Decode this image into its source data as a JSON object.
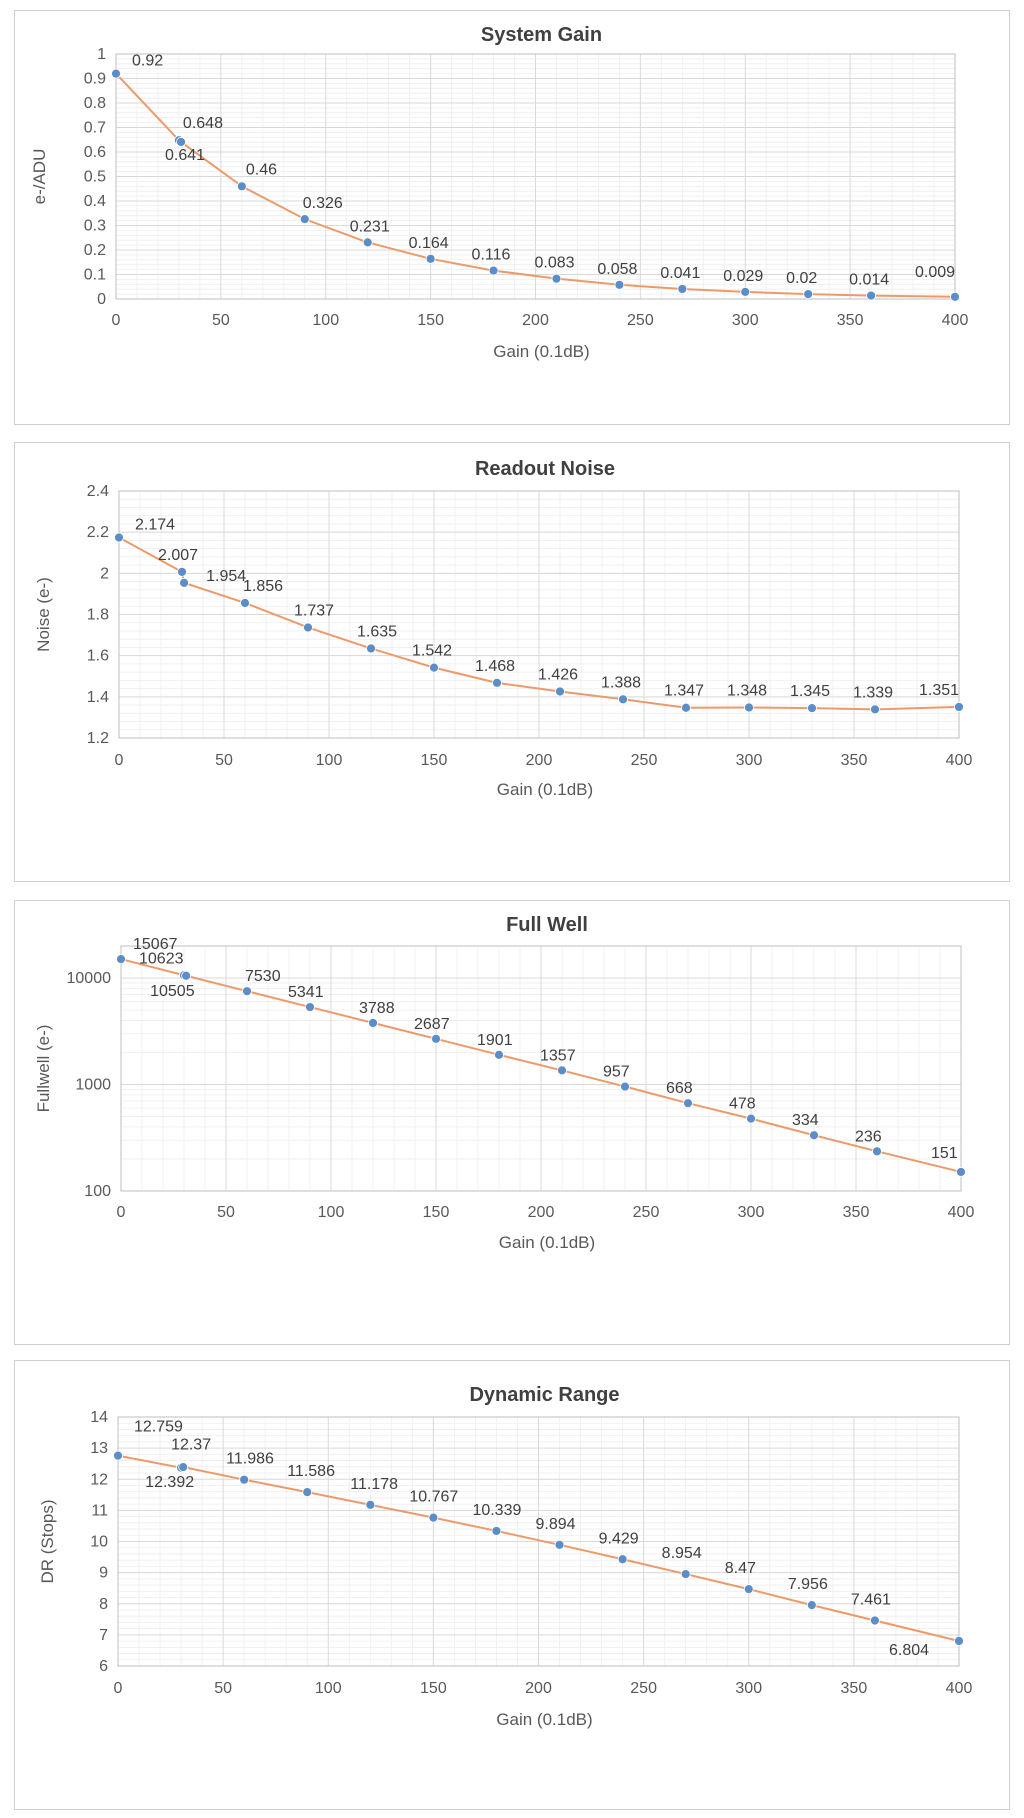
{
  "chart_data": [
    {
      "type": "line",
      "title": "System Gain",
      "xlabel": "Gain (0.1dB)",
      "ylabel": "e-/ADU",
      "xlim": [
        0,
        400
      ],
      "ylim": [
        0,
        1
      ],
      "yscale": "linear",
      "grid": true,
      "xticks": [
        0,
        50,
        100,
        150,
        200,
        250,
        300,
        350,
        400
      ],
      "yticks": [
        0,
        0.1,
        0.2,
        0.3,
        0.4,
        0.5,
        0.6,
        0.7,
        0.8,
        0.9,
        1
      ],
      "ytick_labels": [
        "0",
        "0.1",
        "0.2",
        "0.3",
        "0.4",
        "0.5",
        "0.6",
        "0.7",
        "0.8",
        "0.9",
        "1"
      ],
      "x": [
        0,
        30,
        31,
        60,
        90,
        120,
        150,
        180,
        210,
        240,
        270,
        300,
        330,
        360,
        400
      ],
      "y": [
        0.92,
        0.648,
        0.641,
        0.46,
        0.326,
        0.231,
        0.164,
        0.116,
        0.083,
        0.058,
        0.041,
        0.029,
        0.02,
        0.014,
        0.009
      ],
      "labels": [
        "0.92",
        "0.648",
        "0.641",
        "0.46",
        "0.326",
        "0.231",
        "0.164",
        "0.116",
        "0.083",
        "0.058",
        "0.041",
        "0.029",
        "0.02",
        "0.014",
        "0.009"
      ]
    },
    {
      "type": "line",
      "title": "Readout Noise",
      "xlabel": "Gain (0.1dB)",
      "ylabel": "Noise (e-)",
      "xlim": [
        0,
        400
      ],
      "ylim": [
        1.2,
        2.4
      ],
      "yscale": "linear",
      "grid": true,
      "xticks": [
        0,
        50,
        100,
        150,
        200,
        250,
        300,
        350,
        400
      ],
      "yticks": [
        1.2,
        1.4,
        1.6,
        1.8,
        2,
        2.2,
        2.4
      ],
      "ytick_labels": [
        "1.2",
        "1.4",
        "1.6",
        "1.8",
        "2",
        "2.2",
        "2.4"
      ],
      "x": [
        0,
        30,
        31,
        60,
        90,
        120,
        150,
        180,
        210,
        240,
        270,
        300,
        330,
        360,
        400
      ],
      "y": [
        2.174,
        2.007,
        1.954,
        1.856,
        1.737,
        1.635,
        1.542,
        1.468,
        1.426,
        1.388,
        1.347,
        1.348,
        1.345,
        1.339,
        1.351
      ],
      "labels": [
        "2.174",
        "2.007",
        "1.954",
        "1.856",
        "1.737",
        "1.635",
        "1.542",
        "1.468",
        "1.426",
        "1.388",
        "1.347",
        "1.348",
        "1.345",
        "1.339",
        "1.351"
      ]
    },
    {
      "type": "line",
      "title": "Full Well",
      "xlabel": "Gain (0.1dB)",
      "ylabel": "Fullwell (e-)",
      "xlim": [
        0,
        400
      ],
      "ylim": [
        100,
        20000
      ],
      "yscale": "log",
      "grid": true,
      "xticks": [
        0,
        50,
        100,
        150,
        200,
        250,
        300,
        350,
        400
      ],
      "yticks": [
        100,
        1000,
        10000
      ],
      "ytick_labels": [
        "100",
        "1000",
        "10000"
      ],
      "x": [
        0,
        30,
        31,
        60,
        90,
        120,
        150,
        180,
        210,
        240,
        270,
        300,
        330,
        360,
        400
      ],
      "y": [
        15067,
        10623,
        10505,
        7530,
        5341,
        3788,
        2687,
        1901,
        1357,
        957,
        668,
        478,
        334,
        236,
        151
      ],
      "labels": [
        "15067",
        "10623",
        "10505",
        "7530",
        "5341",
        "3788",
        "2687",
        "1901",
        "1357",
        "957",
        "668",
        "478",
        "334",
        "236",
        "151"
      ]
    },
    {
      "type": "line",
      "title": "Dynamic Range",
      "xlabel": "Gain (0.1dB)",
      "ylabel": "DR (Stops)",
      "xlim": [
        0,
        400
      ],
      "ylim": [
        6,
        14
      ],
      "yscale": "linear",
      "grid": true,
      "xticks": [
        0,
        50,
        100,
        150,
        200,
        250,
        300,
        350,
        400
      ],
      "yticks": [
        6,
        7,
        8,
        9,
        10,
        11,
        12,
        13,
        14
      ],
      "ytick_labels": [
        "6",
        "7",
        "8",
        "9",
        "10",
        "11",
        "12",
        "13",
        "14"
      ],
      "x": [
        0,
        30,
        31,
        60,
        90,
        120,
        150,
        180,
        210,
        240,
        270,
        300,
        330,
        360,
        400
      ],
      "y": [
        12.759,
        12.37,
        12.392,
        11.986,
        11.586,
        11.178,
        10.767,
        10.339,
        9.894,
        9.429,
        8.954,
        8.47,
        7.956,
        7.461,
        6.804
      ],
      "labels": [
        "12.759",
        "12.37",
        "12.392",
        "11.986",
        "11.586",
        "11.178",
        "10.767",
        "10.339",
        "9.894",
        "9.429",
        "8.954",
        "8.47",
        "7.956",
        "7.461",
        "6.804"
      ]
    }
  ]
}
